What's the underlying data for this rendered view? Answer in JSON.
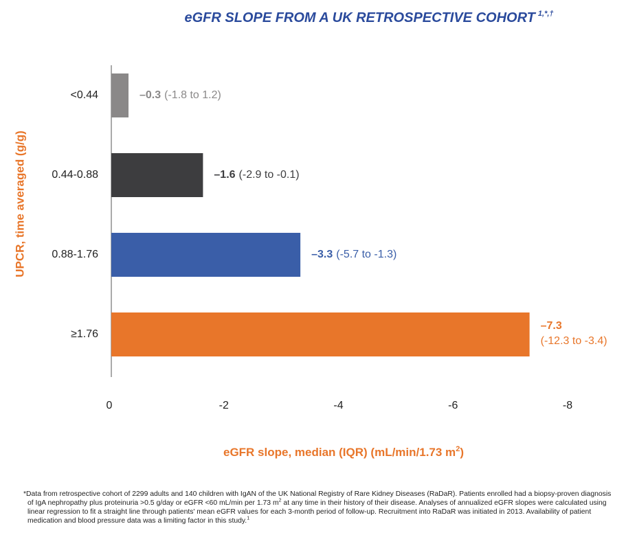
{
  "chart_data": {
    "type": "hbar",
    "title": "eGFR SLOPE FROM A UK RETROSPECTIVE COHORT",
    "title_superscript": "1,*,†",
    "ylabel": "UPCR, time averaged (g/g)",
    "xlabel": "eGFR slope, median (IQR) (mL/min/1.73 m",
    "xlabel_superscript": "2",
    "xlabel_suffix": ")",
    "categories": [
      "<0.44",
      "0.44-0.88",
      "0.88-1.76",
      "≥1.76"
    ],
    "values": [
      -0.3,
      -1.6,
      -3.3,
      -7.3
    ],
    "value_labels": [
      "–0.3",
      "–1.6",
      "–3.3",
      "–7.3"
    ],
    "annotations": [
      "(-1.8 to 1.2)",
      "(-2.9 to -0.1)",
      "(-5.7 to -1.3)",
      "(-12.3 to -3.4)"
    ],
    "colors": [
      "#8a8888",
      "#3d3d3f",
      "#3a5ea8",
      "#e8762a"
    ],
    "xlim": [
      0,
      -8
    ],
    "xticks": [
      0,
      -2,
      -4,
      -6,
      -8
    ],
    "grid": false
  },
  "footnote": {
    "text1": "*Data from retrospective cohort of 2299 adults and 140 children with IgAN of the UK National Registry of Rare Kidney Diseases (RaDaR). Patients enrolled had a biopsy-proven diagnosis of IgA nephropathy plus proteinuria >0.5 g/day or eGFR <60 mL/min per 1.73 m",
    "sup1": "2",
    "text2": " at any time in their history of their disease. Analyses of annualized eGFR slopes were calculated using linear regression to fit a straight line through patients' mean eGFR values for each 3-month period of follow-up. Recruitment into RaDaR was initiated in 2013. Availability of patient medication and blood pressure data was a limiting factor in this study.",
    "sup2": "1"
  }
}
